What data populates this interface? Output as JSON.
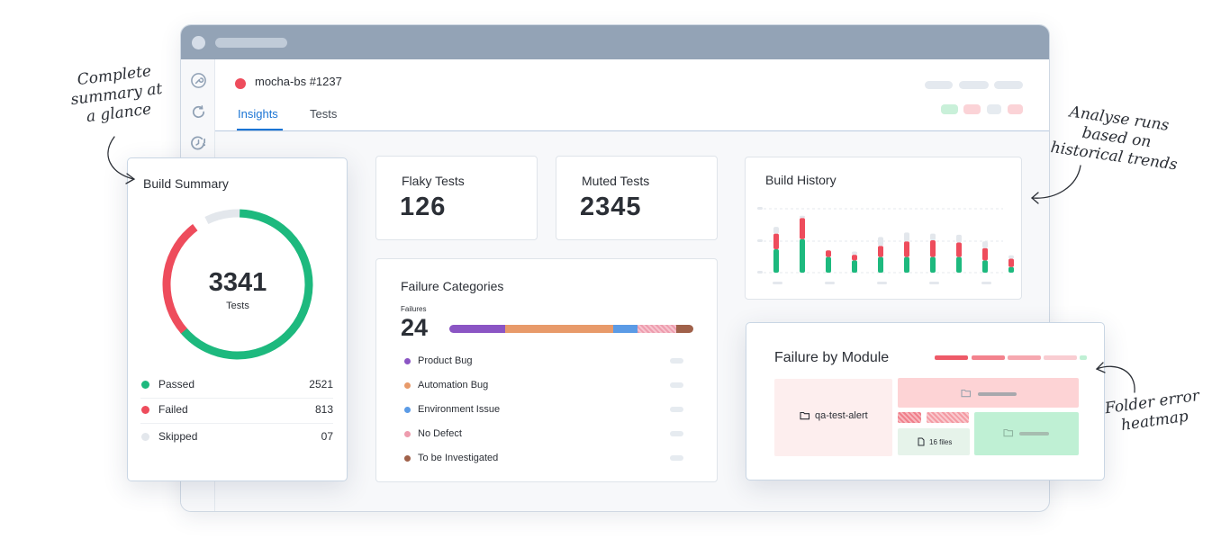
{
  "header": {
    "build_title": "mocha-bs #1237",
    "tabs": [
      {
        "label": "Insights",
        "active": true
      },
      {
        "label": "Tests",
        "active": false
      }
    ],
    "status_chips": [
      "#c9f0d9",
      "#fbd3d7",
      "#e6ebf0",
      "#fbd3d7"
    ]
  },
  "sidebar": {
    "icons": [
      "wrench-icon",
      "refresh-icon",
      "timer-alert-icon"
    ]
  },
  "build_summary": {
    "title": "Build Summary",
    "total": "3341",
    "total_label": "Tests",
    "rows": [
      {
        "label": "Passed",
        "value": "2521",
        "color": "#1db97e"
      },
      {
        "label": "Failed",
        "value": "813",
        "color": "#ee4c5c"
      },
      {
        "label": "Skipped",
        "value": "07",
        "color": "#e3e7ec"
      }
    ]
  },
  "flaky_tests": {
    "title": "Flaky Tests",
    "value": "126"
  },
  "muted_tests": {
    "title": "Muted Tests",
    "value": "2345"
  },
  "failure_categories": {
    "title": "Failure Categories",
    "count_label": "Failures",
    "count": "24",
    "categories": [
      {
        "label": "Product Bug",
        "color": "#8b55c4",
        "share": 0.23
      },
      {
        "label": "Automation Bug",
        "color": "#e89a6a",
        "share": 0.44
      },
      {
        "label": "Environment Issue",
        "color": "#5b9be6",
        "share": 0.1
      },
      {
        "label": "No Defect",
        "color": "#ee9cae",
        "share": 0.16
      },
      {
        "label": "To be Investigated",
        "color": "#a0614a",
        "share": 0.07
      }
    ]
  },
  "build_history": {
    "title": "Build History"
  },
  "chart_data": {
    "type": "bar",
    "title": "Build History",
    "stacked": true,
    "categories": [
      "1",
      "2",
      "3",
      "4",
      "5",
      "6",
      "7",
      "8",
      "9",
      "10"
    ],
    "series": [
      {
        "values": [
          42,
          60,
          28,
          22,
          28,
          28,
          28,
          28,
          22,
          10
        ]
      },
      {
        "values": [
          28,
          38,
          12,
          10,
          20,
          28,
          30,
          26,
          22,
          15
        ]
      },
      {
        "values": [
          12,
          4,
          0,
          6,
          16,
          16,
          12,
          14,
          12,
          6
        ]
      }
    ],
    "colors": [
      "#1db97e",
      "#ee4c5c",
      "#e3e7ec"
    ],
    "grid": true,
    "legend": "none"
  },
  "failure_by_module": {
    "title": "Failure by Module",
    "folder_label": "qa-test-alert",
    "files_label": "16 files"
  },
  "annotations": {
    "summary": [
      "Complete",
      "summary at",
      "a glance"
    ],
    "trends": [
      "Analyse runs",
      "based on",
      "historical trends"
    ],
    "heatmap": [
      "Folder error",
      "heatmap"
    ]
  }
}
